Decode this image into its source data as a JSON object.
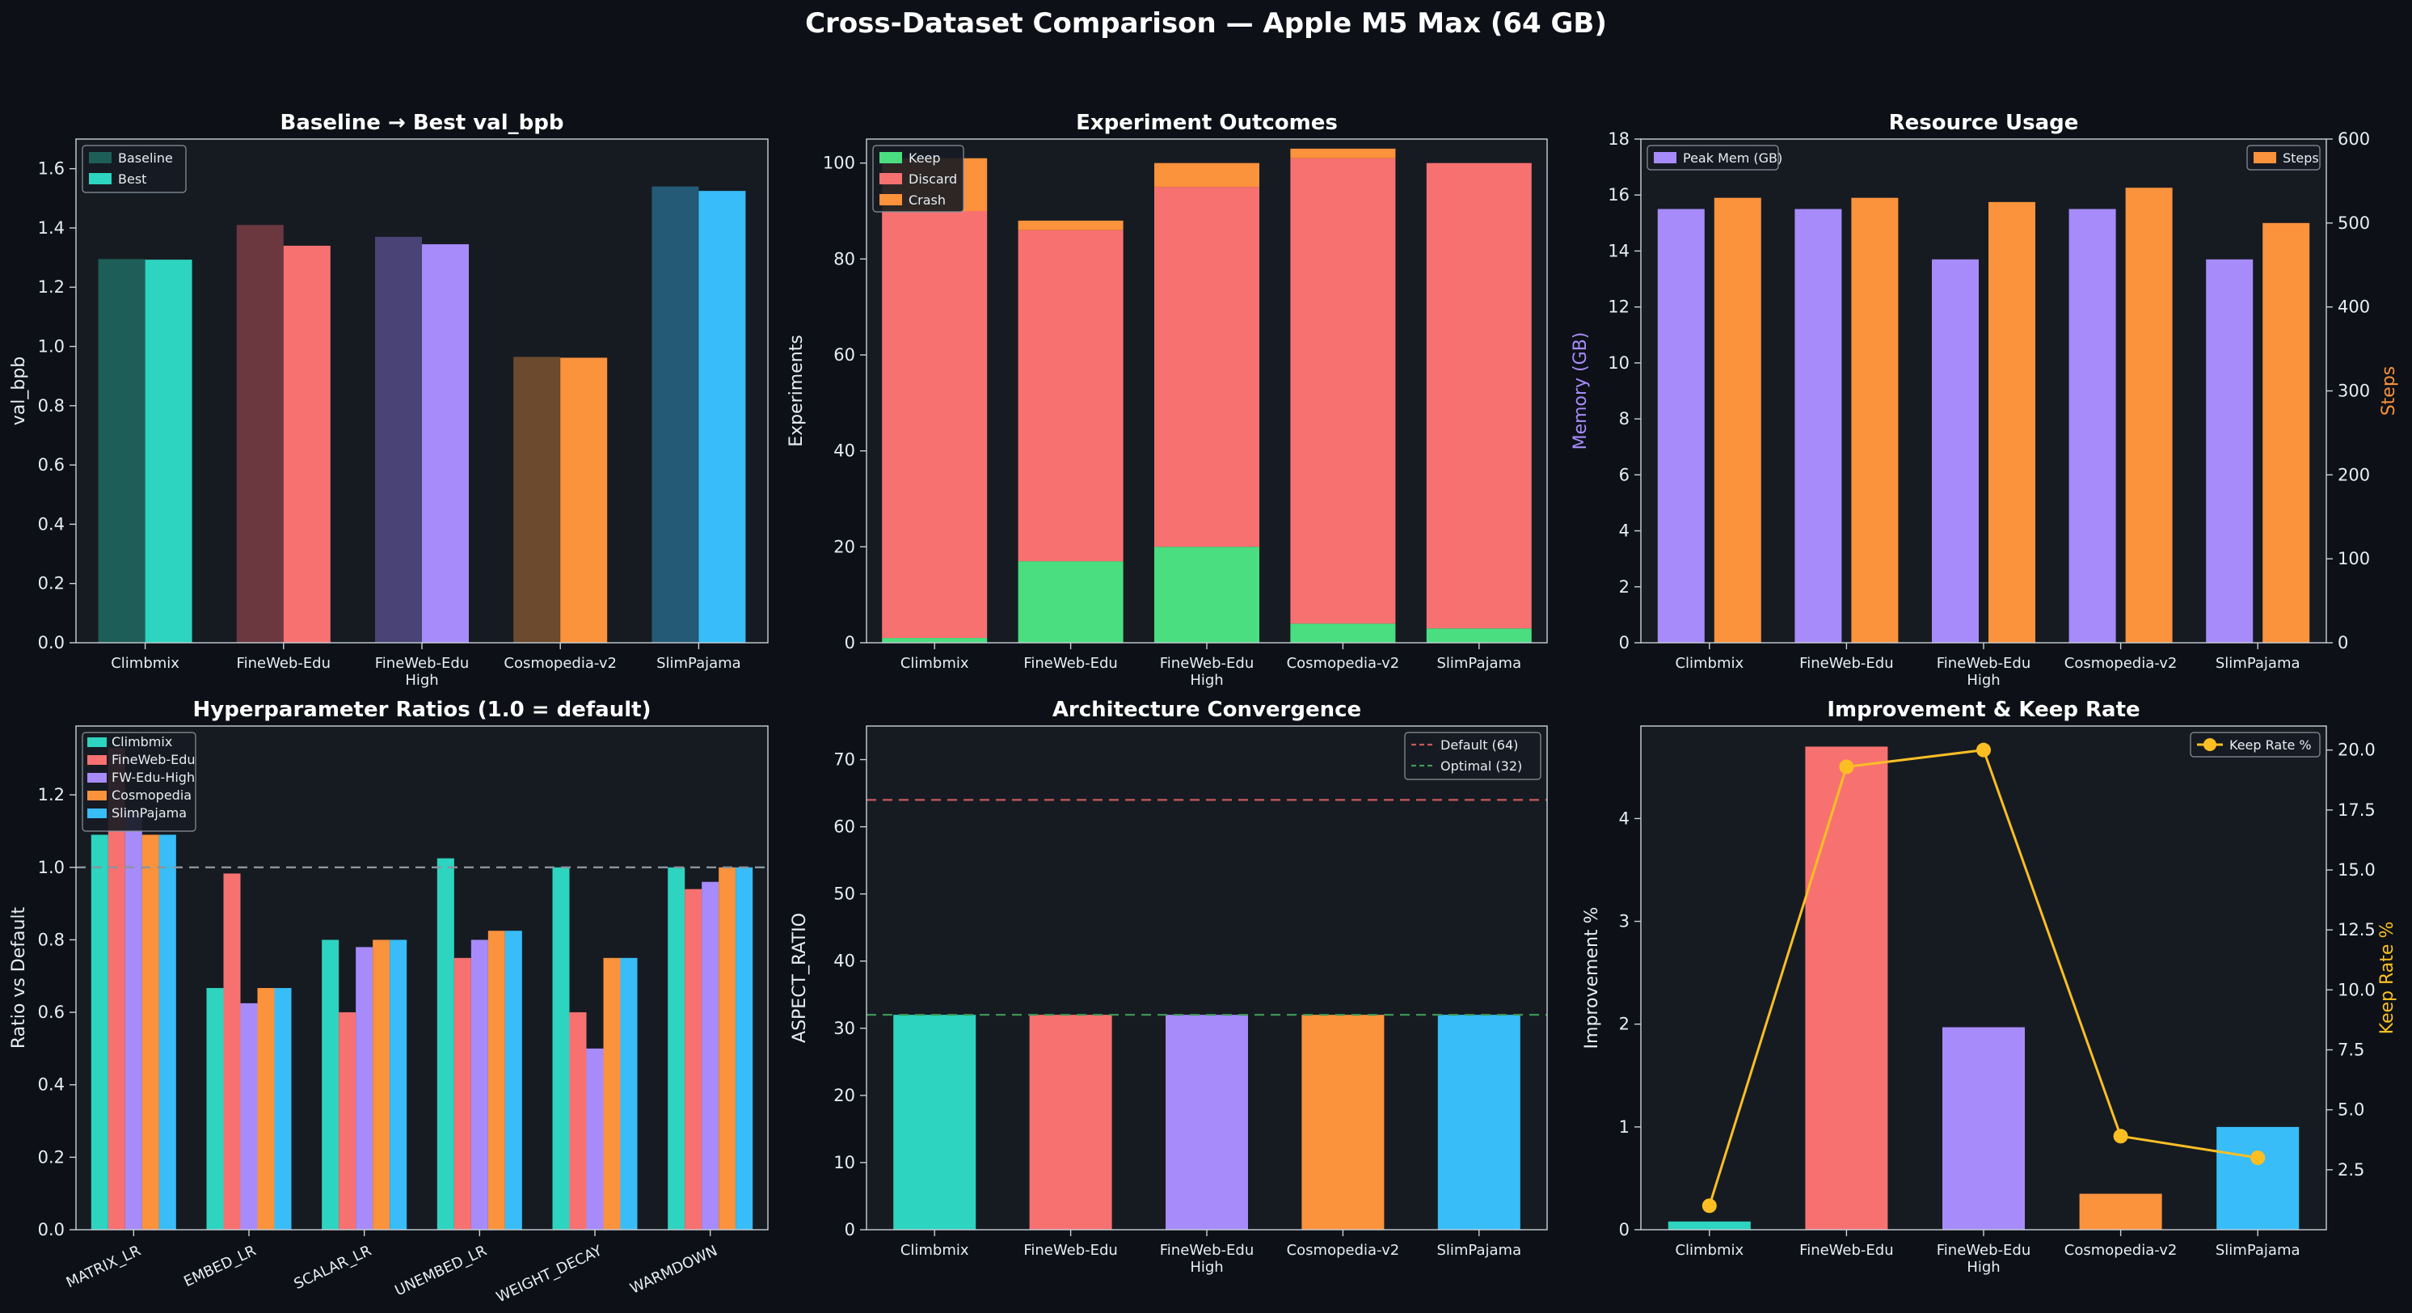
{
  "title": "Cross-Dataset Comparison — Apple M5 Max (64 GB)",
  "colors": {
    "background": "#0d1117",
    "panel": "#161b22",
    "teal": "#2dd4bf",
    "red": "#f87171",
    "purple": "#a78bfa",
    "orange": "#fb923c",
    "blue": "#38bdf8",
    "green": "#4ade80",
    "yellow": "#fbbf24",
    "teal_dark": "#1d5e58",
    "red_dark": "#6b3840",
    "purple_dark": "#4a4375",
    "orange_dark": "#6b4a2d",
    "blue_dark": "#245a76"
  },
  "chart_data": [
    {
      "id": "baseline_best",
      "type": "bar",
      "title": "Baseline → Best val_bpb",
      "ylabel": "val_bpb",
      "ylim": [
        0,
        1.7
      ],
      "yticks": [
        "0.0",
        "0.2",
        "0.4",
        "0.6",
        "0.8",
        "1.0",
        "1.2",
        "1.4",
        "1.6"
      ],
      "categories": [
        "Climbmix",
        "FineWeb-Edu",
        "FineWeb-Edu\nHigh",
        "Cosmopedia-v2",
        "SlimPajama"
      ],
      "series": [
        {
          "name": "Baseline",
          "values": [
            1.295,
            1.41,
            1.37,
            0.965,
            1.54
          ]
        },
        {
          "name": "Best",
          "values": [
            1.293,
            1.34,
            1.345,
            0.962,
            1.525
          ]
        }
      ],
      "legend": [
        "Baseline",
        "Best"
      ]
    },
    {
      "id": "outcomes",
      "type": "bar",
      "stacked": true,
      "title": "Experiment Outcomes",
      "ylabel": "Experiments",
      "ylim": [
        0,
        105
      ],
      "yticks": [
        "0",
        "20",
        "40",
        "60",
        "80",
        "100"
      ],
      "categories": [
        "Climbmix",
        "FineWeb-Edu",
        "FineWeb-Edu\nHigh",
        "Cosmopedia-v2",
        "SlimPajama"
      ],
      "series": [
        {
          "name": "Keep",
          "values": [
            1,
            17,
            20,
            4,
            3
          ]
        },
        {
          "name": "Discard",
          "values": [
            89,
            69,
            75,
            97,
            97
          ]
        },
        {
          "name": "Crash",
          "values": [
            11,
            2,
            5,
            2,
            0
          ]
        }
      ],
      "legend": [
        "Keep",
        "Discard",
        "Crash"
      ]
    },
    {
      "id": "resources",
      "type": "bar",
      "title": "Resource Usage",
      "ylabel": "Memory (GB)",
      "y2label": "Steps",
      "ylim": [
        0,
        18
      ],
      "y2lim": [
        0,
        600
      ],
      "yticks": [
        "0",
        "2",
        "4",
        "6",
        "8",
        "10",
        "12",
        "14",
        "16",
        "18"
      ],
      "y2ticks": [
        "0",
        "100",
        "200",
        "300",
        "400",
        "500",
        "600"
      ],
      "categories": [
        "Climbmix",
        "FineWeb-Edu",
        "FineWeb-Edu\nHigh",
        "Cosmopedia-v2",
        "SlimPajama"
      ],
      "series": [
        {
          "name": "Peak Mem (GB)",
          "axis": "left",
          "values": [
            15.5,
            15.5,
            13.7,
            15.5,
            13.7
          ]
        },
        {
          "name": "Steps",
          "axis": "right",
          "values": [
            530,
            530,
            525,
            542,
            500
          ]
        }
      ],
      "legend": [
        "Peak Mem (GB)",
        "Steps"
      ]
    },
    {
      "id": "hparams",
      "type": "bar",
      "title": "Hyperparameter Ratios (1.0 = default)",
      "ylabel": "Ratio vs Default",
      "ylim": [
        0,
        1.39
      ],
      "yticks": [
        "0.0",
        "0.2",
        "0.4",
        "0.6",
        "0.8",
        "1.0",
        "1.2"
      ],
      "reference": 1.0,
      "categories": [
        "MATRIX_LR",
        "EMBED_LR",
        "SCALAR_LR",
        "UNEMBED_LR",
        "WEIGHT_DECAY",
        "WARMDOWN"
      ],
      "series": [
        {
          "name": "Climbmix",
          "values": [
            1.09,
            0.667,
            0.8,
            1.025,
            1.0,
            1.0
          ]
        },
        {
          "name": "FineWeb-Edu",
          "values": [
            1.33,
            0.983,
            0.6,
            0.75,
            0.6,
            0.94
          ]
        },
        {
          "name": "FW-Edu-High",
          "values": [
            1.15,
            0.625,
            0.78,
            0.8,
            0.5,
            0.96
          ]
        },
        {
          "name": "Cosmopedia",
          "values": [
            1.09,
            0.667,
            0.8,
            0.825,
            0.75,
            1.0
          ]
        },
        {
          "name": "SlimPajama",
          "values": [
            1.09,
            0.667,
            0.8,
            0.825,
            0.75,
            1.0
          ]
        }
      ],
      "legend": [
        "Climbmix",
        "FineWeb-Edu",
        "FW-Edu-High",
        "Cosmopedia",
        "SlimPajama"
      ]
    },
    {
      "id": "arch",
      "type": "bar",
      "title": "Architecture Convergence",
      "ylabel": "ASPECT_RATIO",
      "ylim": [
        0,
        75
      ],
      "yticks": [
        "0",
        "10",
        "20",
        "30",
        "40",
        "50",
        "60",
        "70"
      ],
      "categories": [
        "Climbmix",
        "FineWeb-Edu",
        "FineWeb-Edu\nHigh",
        "Cosmopedia-v2",
        "SlimPajama"
      ],
      "values": [
        32,
        32,
        32,
        32,
        32
      ],
      "reference_lines": [
        {
          "name": "Default (64)",
          "value": 64
        },
        {
          "name": "Optimal (32)",
          "value": 32
        }
      ],
      "legend": [
        "Default (64)",
        "Optimal (32)"
      ]
    },
    {
      "id": "improvement",
      "type": "bar",
      "title": "Improvement & Keep Rate",
      "ylabel": "Improvement %",
      "y2label": "Keep Rate %",
      "ylim": [
        0,
        4.9
      ],
      "y2lim": [
        0,
        21
      ],
      "yticks": [
        "0",
        "1",
        "2",
        "3",
        "4"
      ],
      "y2ticks": [
        "2.5",
        "5.0",
        "7.5",
        "10.0",
        "12.5",
        "15.0",
        "17.5",
        "20.0"
      ],
      "categories": [
        "Climbmix",
        "FineWeb-Edu",
        "FineWeb-Edu\nHigh",
        "Cosmopedia-v2",
        "SlimPajama"
      ],
      "series": [
        {
          "name": "Improvement",
          "type": "bar",
          "values": [
            0.08,
            4.7,
            1.97,
            0.35,
            1.0
          ]
        },
        {
          "name": "Keep Rate %",
          "type": "line",
          "values": [
            1.0,
            19.3,
            20.0,
            3.9,
            3.0
          ]
        }
      ],
      "legend": [
        "Keep Rate %"
      ]
    }
  ]
}
